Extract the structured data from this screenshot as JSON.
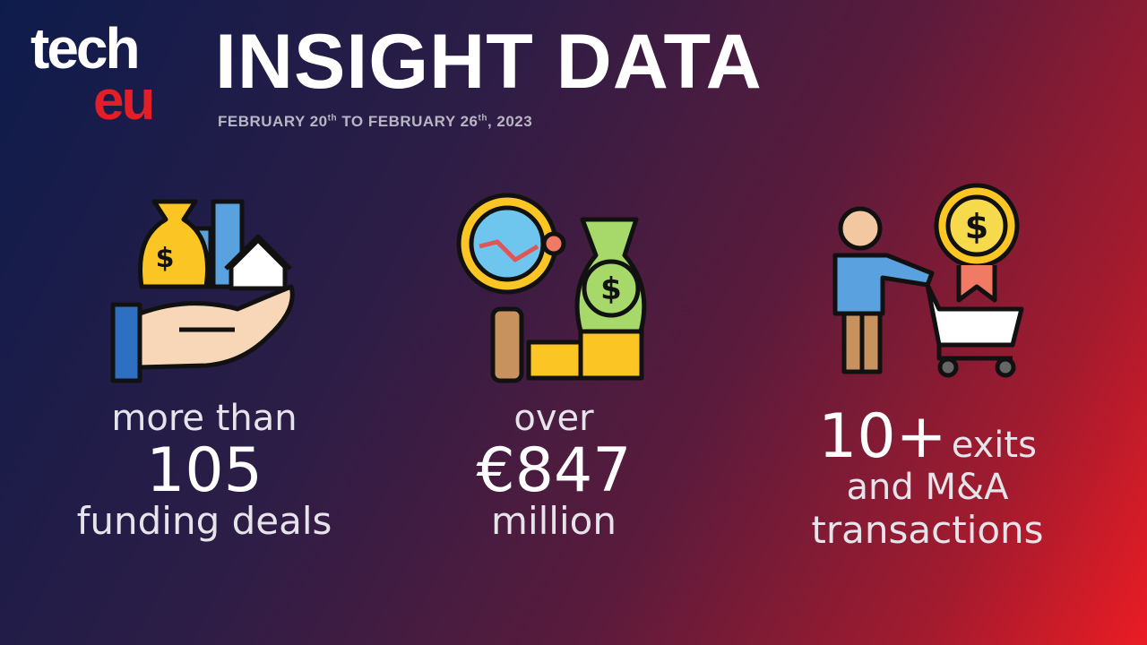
{
  "logo": {
    "top": "tech",
    "bottom": "eu"
  },
  "header": {
    "title": "INSIGHT DATA",
    "subtitle": [
      "FEBRUARY 20",
      "th",
      " TO FEBRUARY 26",
      "th",
      ", 2023"
    ]
  },
  "stats": [
    {
      "lead": "more than",
      "figure": "105",
      "tail": "funding deals"
    },
    {
      "lead": "over",
      "figure": "€847",
      "tail": "million"
    },
    {
      "figure": "10+",
      "after_figure": "exits",
      "line2": "and M&A",
      "tail": "transactions"
    }
  ]
}
